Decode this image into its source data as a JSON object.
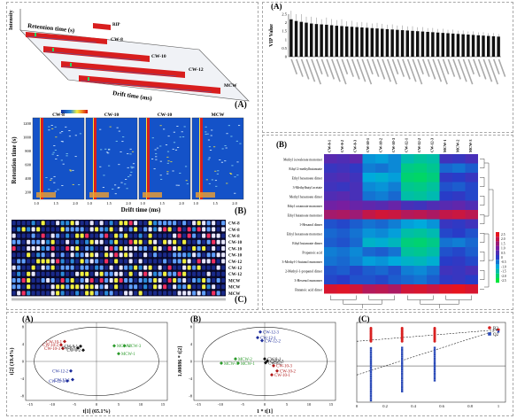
{
  "panel_left": {
    "label_a": "(A)",
    "label_b": "(B)",
    "label_c": "(C)",
    "surface": {
      "z_label": "Intensity",
      "y_label": "Retention time (s)",
      "x_label": "Drift time (ms)",
      "tags": [
        "RIP",
        "CW-8",
        "CW-10",
        "CW-12",
        "MCW"
      ]
    },
    "topo": {
      "samples": [
        "CW-8",
        "CW-10",
        "CW-10",
        "MCW"
      ],
      "y_label": "Retention time (s)",
      "x_label": "Drift time (ms)",
      "y_ticks": [
        "1200",
        "1000",
        "800",
        "600",
        "400",
        "200"
      ],
      "x_ticks": [
        "1.0",
        "1.5",
        "2.0",
        "1.0",
        "1.5",
        "2.0",
        "1.0",
        "1.5",
        "2.0",
        "1.0",
        "1.5",
        "2.0"
      ]
    },
    "fingerprint": {
      "rows": [
        "CW-8",
        "CW-8",
        "CW-8",
        "CW-10",
        "CW-10",
        "CW-10",
        "CW-12",
        "CW-12",
        "CW-12",
        "MCW",
        "MCW",
        "MCW"
      ]
    }
  },
  "panel_vip": {
    "label": "(A)",
    "y_label": "VIP Value",
    "y_ticks": [
      "0",
      "0.5",
      "1",
      "1.5",
      "2",
      "2.5"
    ],
    "chart_data": {
      "type": "bar",
      "ylabel": "VIP Value",
      "ylim": [
        0,
        2.5
      ],
      "values": [
        2.2,
        2.1,
        2.05,
        2.0,
        1.95,
        1.92,
        1.9,
        1.88,
        1.85,
        1.82,
        1.8,
        1.78,
        1.76,
        1.74,
        1.72,
        1.7,
        1.68,
        1.66,
        1.64,
        1.62,
        1.6,
        1.58,
        1.56,
        1.54,
        1.52,
        1.5,
        1.48,
        1.46,
        1.44,
        1.42,
        1.4,
        1.38,
        1.36,
        1.34,
        1.32,
        1.3,
        1.28,
        1.26,
        1.24,
        1.22,
        1.2,
        1.18
      ],
      "errors": [
        0.5,
        0.4,
        0.45,
        0.35,
        0.4,
        0.38,
        0.3,
        0.42,
        0.36,
        0.33,
        0.4,
        0.3,
        0.35,
        0.28,
        0.32,
        0.3,
        0.27,
        0.33,
        0.29,
        0.26,
        0.3,
        0.25,
        0.28,
        0.24,
        0.27,
        0.23,
        0.26,
        0.22,
        0.25,
        0.21,
        0.24,
        0.2,
        0.23,
        0.19,
        0.22,
        0.18,
        0.21,
        0.17,
        0.2,
        0.16,
        0.19,
        0.15
      ]
    }
  },
  "panel_heat": {
    "label": "(B)",
    "columns": [
      "CW-8-1",
      "CW-8-2",
      "CW-8-3",
      "CW-10-1",
      "CW-10-2",
      "CW-10-3",
      "CW-12-1",
      "CW-12-2",
      "CW-12-3",
      "MCW-1",
      "MCW-2",
      "MCW-3"
    ],
    "rows": [
      "Methyl isovalerate monomer",
      "Ethyl 2-methylbutanoate",
      "Ethyl hexanoate dimer",
      "3-Methylbutyl acetate",
      "Methyl hexanoate dimer",
      "Ethyl octanoate monomer",
      "Ethyl butanoate monomer",
      "1-Hexanol dimer",
      "Ethyl hexanoate monomer",
      "Ethyl butanoate dimer",
      "Propanoic acid",
      "3-Methyl-1-butanol monomer",
      "2-Methyl-1-propanol dimer",
      "3-Hexenol monomer",
      "Butanoic acid dimer"
    ],
    "legend_ticks": [
      "2.5",
      "2.0",
      "1.5",
      "1.0",
      "0.5",
      "0",
      "-0.5",
      "-1.0",
      "-1.5",
      "-2.0",
      "-2.5"
    ],
    "chart_data": {
      "type": "heatmap",
      "values": [
        [
          0.6,
          0.5,
          0.7,
          -0.8,
          -0.9,
          -0.7,
          -1.4,
          -1.6,
          -1.5,
          0.3,
          0.2,
          0.4
        ],
        [
          0.2,
          0.3,
          0.1,
          -0.6,
          -0.5,
          -0.7,
          -1.8,
          -1.9,
          -1.7,
          -0.4,
          -0.5,
          -0.3
        ],
        [
          0.4,
          0.5,
          0.3,
          -1.0,
          -1.1,
          -0.9,
          -2.0,
          -2.1,
          -1.9,
          0.1,
          0.0,
          0.2
        ],
        [
          0.3,
          0.2,
          0.4,
          -0.7,
          -0.8,
          -0.6,
          -1.7,
          -1.8,
          -1.6,
          -0.2,
          -0.3,
          -0.1
        ],
        [
          0.5,
          0.6,
          0.4,
          -0.5,
          -0.6,
          -0.4,
          -1.5,
          -1.6,
          -1.4,
          0.0,
          0.1,
          -0.1
        ],
        [
          0.9,
          1.0,
          0.8,
          0.7,
          0.6,
          0.8,
          0.4,
          0.3,
          0.5,
          0.6,
          0.7,
          0.5
        ],
        [
          1.6,
          1.7,
          1.5,
          2.0,
          2.2,
          2.1,
          1.8,
          1.9,
          1.7,
          2.0,
          2.1,
          1.9
        ],
        [
          -0.2,
          -0.1,
          -0.3,
          -0.5,
          -0.4,
          -0.6,
          -0.9,
          -1.0,
          -0.8,
          0.2,
          0.1,
          0.3
        ],
        [
          -0.4,
          -0.3,
          -0.5,
          -0.8,
          -0.7,
          -0.9,
          -1.5,
          -1.6,
          -1.4,
          -0.1,
          0.0,
          -0.2
        ],
        [
          -0.3,
          -0.2,
          -0.4,
          -1.2,
          -1.1,
          -1.3,
          -1.9,
          -2.0,
          -1.8,
          -0.5,
          -0.6,
          -0.4
        ],
        [
          -0.6,
          -0.5,
          -0.7,
          -0.4,
          -0.3,
          -0.5,
          -1.6,
          -1.7,
          -1.5,
          -0.2,
          -0.1,
          -0.3
        ],
        [
          -0.5,
          -0.4,
          -0.6,
          -0.9,
          -0.8,
          -1.0,
          -1.2,
          -1.3,
          -1.1,
          0.0,
          0.1,
          -0.1
        ],
        [
          -0.2,
          -0.3,
          -0.1,
          -0.3,
          -0.4,
          -0.2,
          -0.6,
          -0.7,
          -0.5,
          0.3,
          0.2,
          0.4
        ],
        [
          -0.1,
          0.0,
          -0.2,
          -0.2,
          -0.1,
          -0.3,
          -0.4,
          -0.5,
          -0.3,
          0.1,
          0.2,
          0.0
        ],
        [
          2.3,
          2.4,
          2.2,
          1.8,
          1.9,
          1.7,
          2.2,
          2.3,
          2.1,
          2.4,
          2.5,
          2.3
        ]
      ],
      "vrange": [
        -2.5,
        2.5
      ]
    }
  },
  "panel_pca": {
    "label": "(A)",
    "xlabel": "t[1]  (65.1%)",
    "ylabel": "t[2]  (19.4%)",
    "x_ticks": [
      "-15",
      "-10",
      "-5",
      "0",
      "5",
      "10",
      "15"
    ],
    "y_ticks": [
      "8",
      "4",
      "0",
      "-4",
      "-8"
    ],
    "chart_data": {
      "type": "scatter",
      "xlim": [
        -16,
        16
      ],
      "ylim": [
        -9,
        9
      ],
      "points": [
        {
          "x": -7.2,
          "y": 4.6,
          "label": "CW-10-1",
          "group": "CW-10"
        },
        {
          "x": -8.0,
          "y": 3.8,
          "label": "CW-10-2",
          "group": "CW-10"
        },
        {
          "x": -7.6,
          "y": 3.0,
          "label": "CW-10-3",
          "group": "CW-10"
        },
        {
          "x": -3.6,
          "y": 3.5,
          "label": "CW-8-1",
          "group": "CW-8"
        },
        {
          "x": -4.2,
          "y": 3.1,
          "label": "CW-8-3",
          "group": "CW-8"
        },
        {
          "x": -3.0,
          "y": 2.6,
          "label": "CW-8-2",
          "group": "CW-8"
        },
        {
          "x": 4.0,
          "y": 3.6,
          "label": "MCW-2",
          "group": "MCW"
        },
        {
          "x": 6.3,
          "y": 3.6,
          "label": "MCW-3",
          "group": "MCW"
        },
        {
          "x": 5.0,
          "y": 1.8,
          "label": "MCW-1",
          "group": "MCW"
        },
        {
          "x": -5.8,
          "y": -2.2,
          "label": "CW-12-2",
          "group": "CW-12"
        },
        {
          "x": -5.4,
          "y": -4.2,
          "label": "CW-12-1",
          "group": "CW-12"
        },
        {
          "x": -6.6,
          "y": -4.5,
          "label": "CW-12-3",
          "group": "CW-12"
        }
      ]
    }
  },
  "panel_plsda": {
    "label": "(B)",
    "xlabel": "1 * t[1]",
    "ylabel": "1.00886 * t[2]",
    "x_ticks": [
      "-15",
      "-10",
      "-5",
      "0",
      "5",
      "10",
      "15"
    ],
    "y_ticks": [
      "8",
      "4",
      "0",
      "-4",
      "-8"
    ],
    "chart_data": {
      "type": "scatter",
      "xlim": [
        -16,
        16
      ],
      "ylim": [
        -9,
        9
      ],
      "points": [
        {
          "x": -1.0,
          "y": 6.8,
          "label": "CW-12-3",
          "group": "CW-12"
        },
        {
          "x": -1.6,
          "y": 5.5,
          "label": "CW-12-1",
          "group": "CW-12"
        },
        {
          "x": -0.6,
          "y": 4.8,
          "label": "CW-12-2",
          "group": "CW-12"
        },
        {
          "x": -6.6,
          "y": 0.6,
          "label": "MCW-2",
          "group": "MCW"
        },
        {
          "x": -9.8,
          "y": -0.4,
          "label": "MCW-3",
          "group": "MCW"
        },
        {
          "x": -6.0,
          "y": -0.4,
          "label": "MCW-1",
          "group": "MCW"
        },
        {
          "x": 0.0,
          "y": 0.6,
          "label": "CW-8-1",
          "group": "CW-8"
        },
        {
          "x": 0.6,
          "y": 0.1,
          "label": "CW-8-3",
          "group": "CW-8"
        },
        {
          "x": 0.2,
          "y": -0.3,
          "label": "CW-8-2",
          "group": "CW-8"
        },
        {
          "x": 2.0,
          "y": -1.0,
          "label": "CW-10-3",
          "group": "CW-10"
        },
        {
          "x": 2.8,
          "y": -2.2,
          "label": "CW-10-2",
          "group": "CW-10"
        },
        {
          "x": 1.6,
          "y": -3.1,
          "label": "CW-10-1",
          "group": "CW-10"
        }
      ]
    }
  },
  "panel_perm": {
    "label": "(C)",
    "legend": [
      "R2",
      "Q2"
    ],
    "x_ticks": [
      "0",
      "0.2",
      "0.4",
      "0.6",
      "0.8",
      "1"
    ],
    "chart_data": {
      "type": "scatter",
      "xlim": [
        0,
        1.05
      ],
      "ylim": [
        -1.0,
        1.2
      ],
      "r2_points_x": [
        0.1,
        0.32,
        0.55
      ],
      "q2_points_x": [
        0.1,
        0.32,
        0.55
      ],
      "r2_line": [
        [
          0,
          0.68
        ],
        [
          1,
          1.0
        ]
      ],
      "q2_line": [
        [
          0,
          -0.25
        ],
        [
          1,
          1.0
        ]
      ]
    }
  },
  "colors": {
    "cw8": "#111111",
    "cw10": "#b01818",
    "cw12": "#1a2a9a",
    "mcw": "#2a9a2a",
    "r2": "#d82020",
    "q2": "#2a4ab8"
  }
}
